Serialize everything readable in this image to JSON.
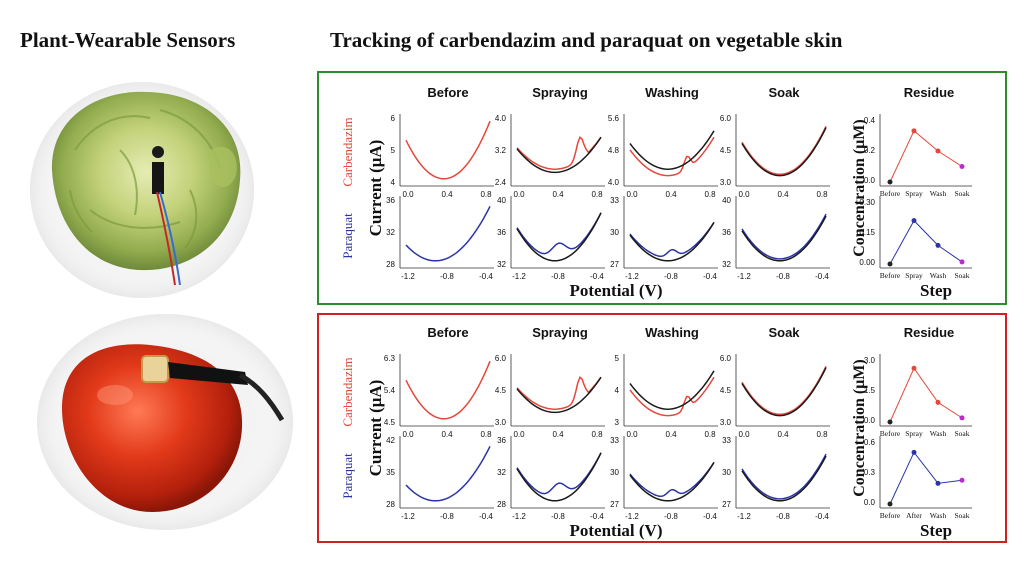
{
  "titles": {
    "left": "Plant-Wearable Sensors",
    "right": "Tracking of carbendazim and paraquat on vegetable skin"
  },
  "colors": {
    "lettuce_frame": "#2e8b2e",
    "tomato_frame": "#d21f1f",
    "carbendazim": "#e5473a",
    "paraquat": "#2b35a8",
    "baseline": "#1a1a1a"
  },
  "axis_labels": {
    "current": "Current (μA)",
    "potential": "Potential (V)",
    "concentration": "Concentration (μM)",
    "step": "Step",
    "carbendazim": "Carbendazim",
    "paraquat": "Paraquat"
  },
  "step_headers": [
    "Before",
    "Spraying",
    "Washing",
    "Soak",
    "Residue"
  ],
  "x_ticks": {
    "carbendazim": [
      "0.0",
      "0.4",
      "0.8"
    ],
    "paraquat": [
      "-1.2",
      "-0.8",
      "-0.4"
    ]
  },
  "panels": [
    {
      "id": "lettuce",
      "photo": "lettuce",
      "y_ticks": {
        "carbendazim": [
          [
            "6",
            "5",
            "4"
          ],
          [
            "4.0",
            "3.2",
            "2.4"
          ],
          [
            "5.6",
            "4.8",
            "4.0"
          ],
          [
            "6.0",
            "4.5",
            "3.0"
          ]
        ],
        "paraquat": [
          [
            "36",
            "32",
            "28"
          ],
          [
            "40",
            "36",
            "32"
          ],
          [
            "33",
            "30",
            "27"
          ],
          [
            "40",
            "36",
            "32"
          ]
        ]
      },
      "residue": {
        "carbendazim": {
          "labels": [
            "Before",
            "Spray",
            "Wash",
            "Soak"
          ],
          "values": [
            0.0,
            0.33,
            0.2,
            0.1
          ],
          "ticks": [
            "0.4",
            "0.2",
            "0.0"
          ],
          "ymax": 0.4
        },
        "paraquat": {
          "labels": [
            "Before",
            "Spray",
            "Wash",
            "Soak"
          ],
          "values": [
            0.0,
            0.21,
            0.09,
            0.01
          ],
          "ticks": [
            "0.30",
            "0.15",
            "0.00"
          ],
          "ymax": 0.3
        }
      }
    },
    {
      "id": "tomato",
      "photo": "tomato",
      "y_ticks": {
        "carbendazim": [
          [
            "6.3",
            "5.4",
            "4.5"
          ],
          [
            "6.0",
            "4.5",
            "3.0"
          ],
          [
            "5",
            "4",
            "3"
          ],
          [
            "6.0",
            "4.5",
            "3.0"
          ]
        ],
        "paraquat": [
          [
            "42",
            "35",
            "28"
          ],
          [
            "36",
            "32",
            "28"
          ],
          [
            "33",
            "30",
            "27"
          ],
          [
            "33",
            "30",
            "27"
          ]
        ]
      },
      "residue": {
        "carbendazim": {
          "labels": [
            "Before",
            "Spray",
            "Wash",
            "Soak"
          ],
          "values": [
            0.0,
            2.6,
            0.95,
            0.2
          ],
          "ticks": [
            "3.0",
            "1.5",
            "0.0"
          ],
          "ymax": 3.0
        },
        "paraquat": {
          "labels": [
            "Before",
            "After",
            "Wash",
            "Soak"
          ],
          "values": [
            0.0,
            0.5,
            0.2,
            0.23
          ],
          "ticks": [
            "0.6",
            "0.3",
            "0.0"
          ],
          "ymax": 0.6
        }
      }
    }
  ]
}
